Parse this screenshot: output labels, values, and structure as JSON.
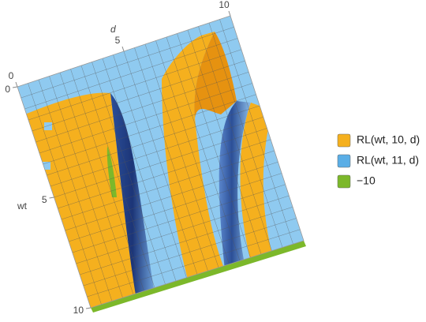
{
  "chart_data": {
    "type": "surface",
    "xlabel": "d",
    "ylabel": "wt",
    "xlim": [
      0,
      10
    ],
    "xticks": [
      0,
      5,
      10
    ],
    "ylim": [
      0,
      10
    ],
    "yticks": [
      0,
      5,
      10
    ],
    "legend": "right",
    "series": [
      {
        "name": "RL(wt, 10, d)",
        "color": "#f5b01e"
      },
      {
        "name": "RL(wt, 11, d)",
        "color": "#5aaee6"
      },
      {
        "name": "−10",
        "color": "#7cb82a"
      }
    ]
  }
}
